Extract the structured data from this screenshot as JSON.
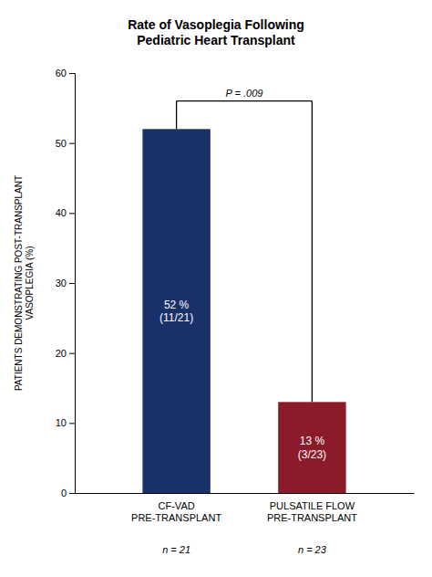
{
  "chart_data": {
    "type": "bar",
    "title": "Rate of Vasoplegia Following\nPediatric Heart Transplant",
    "categories": [
      "CF-VAD\nPRE-TRANSPLANT",
      "PULSATILE FLOW\nPRE-TRANSPLANT"
    ],
    "n_labels": [
      "n = 21",
      "n = 23"
    ],
    "values": [
      52,
      13
    ],
    "value_labels": [
      "52 %\n(11/21)",
      "13 %\n(3/23)"
    ],
    "data_labels": true,
    "colors": [
      "#1a3068",
      "#8b1a2a"
    ],
    "ylabel": "PATIENTS DEMONSTRATING POST-TRANSPLANT\nVASOPLEGIA (%)",
    "ylim": [
      0,
      60
    ],
    "yticks": [
      0,
      10,
      20,
      30,
      40,
      50,
      60
    ],
    "significance": {
      "y": 56,
      "label": "P = .009"
    },
    "grid": false
  }
}
